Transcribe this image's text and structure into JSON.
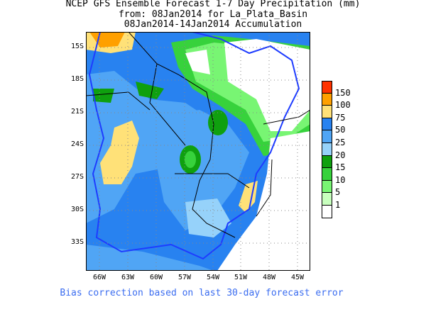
{
  "title": {
    "line1": "NCEP GFS Ensemble Forecast 1-7 Day Precipitation (mm)",
    "line2": "from: 08Jan2014   for La_Plata_Basin",
    "line3": "08Jan2014-14Jan2014 Accumulation"
  },
  "lat_labels": [
    "15S",
    "18S",
    "21S",
    "24S",
    "27S",
    "30S",
    "33S"
  ],
  "lon_labels": [
    "66W",
    "63W",
    "60W",
    "57W",
    "54W",
    "51W",
    "48W",
    "45W"
  ],
  "colorbar": {
    "labels": [
      "150",
      "100",
      "75",
      "50",
      "25",
      "20",
      "15",
      "10",
      "5",
      "1"
    ],
    "colors": [
      "#ff3300",
      "#ffa000",
      "#ffe178",
      "#2882f0",
      "#50a5f5",
      "#96d2fa",
      "#0fa00f",
      "#37d23c",
      "#78f573",
      "#c8ffbe",
      "#ffffff"
    ]
  },
  "footer": "Bias correction based on last 30-day forecast error"
}
